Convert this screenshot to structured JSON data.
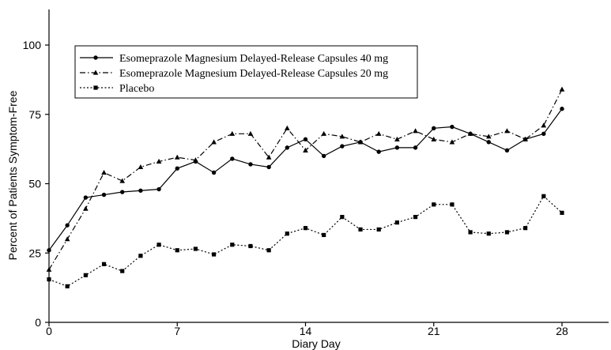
{
  "chart_data": {
    "type": "line",
    "title": "",
    "xlabel": "Diary Day",
    "ylabel": "Percent of Patients Symptom-Free",
    "xlim": [
      0,
      30
    ],
    "ylim": [
      0,
      115
    ],
    "xticks": [
      0,
      7,
      14,
      21,
      28
    ],
    "yticks": [
      0,
      25,
      50,
      75,
      100
    ],
    "grid": false,
    "legend_position": "top-left",
    "x": [
      0,
      1,
      2,
      3,
      4,
      5,
      6,
      7,
      8,
      9,
      10,
      11,
      12,
      13,
      14,
      15,
      16,
      17,
      18,
      19,
      20,
      21,
      22,
      23,
      24,
      25,
      26,
      27,
      28
    ],
    "series": [
      {
        "name": "Esomeprazole Magnesium Delayed-Release Capsules 40 mg",
        "style": "solid",
        "marker": "circle",
        "values": [
          26,
          35,
          45,
          46,
          47,
          47.5,
          48,
          55.5,
          58,
          54,
          59,
          57,
          56,
          63,
          66,
          60,
          63.5,
          65,
          61.5,
          63,
          63,
          70,
          70.5,
          68,
          65,
          62,
          66,
          68,
          77
        ]
      },
      {
        "name": "Esomeprazole Magnesium Delayed-Release Capsules 20 mg",
        "style": "dashdot",
        "marker": "triangle",
        "values": [
          19,
          30,
          41,
          54,
          51,
          56,
          58,
          59.5,
          58.5,
          65,
          68,
          68,
          59.5,
          70,
          62,
          68,
          67,
          65,
          68,
          66,
          69,
          66,
          65,
          68,
          67,
          69,
          66,
          71,
          84
        ]
      },
      {
        "name": "Placebo",
        "style": "dotted",
        "marker": "square",
        "values": [
          15.5,
          13,
          17,
          21,
          18.5,
          24,
          28,
          26,
          26.5,
          24.5,
          28,
          27.5,
          26,
          32,
          34,
          31.5,
          38,
          33.5,
          33.5,
          36,
          38,
          42.5,
          42.5,
          32.5,
          32,
          32.5,
          34,
          45.5,
          39.5
        ]
      }
    ]
  }
}
